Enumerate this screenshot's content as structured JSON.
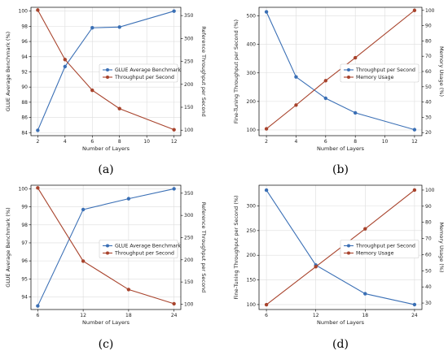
{
  "colors": {
    "blue": "#3a6fb5",
    "red": "#a8432c"
  },
  "chart_data": [
    {
      "panel": "(a)",
      "type": "line",
      "xlabel": "Number of Layers",
      "ylabel_left": "GLUE Average Benchmark (%)",
      "ylabel_right": "Reference Throughput per Second",
      "x": [
        2,
        4,
        6,
        8,
        12
      ],
      "xticks": [
        2,
        4,
        6,
        8,
        10,
        12
      ],
      "xlim": [
        1.5,
        12.5
      ],
      "ylim_left": [
        83.6,
        100.5
      ],
      "yticks_left": [
        84,
        86,
        88,
        90,
        92,
        94,
        96,
        98,
        100
      ],
      "ylim_right": [
        88,
        368
      ],
      "yticks_right": [
        100,
        150,
        200,
        250,
        300,
        350
      ],
      "grid": true,
      "legend_position": "center-right",
      "series": [
        {
          "name": "GLUE Average Benchmark",
          "axis": "left",
          "color": "blue",
          "values": [
            84.3,
            92.7,
            97.8,
            97.9,
            100
          ]
        },
        {
          "name": "Throughput per Second",
          "axis": "right",
          "color": "red",
          "values": [
            362,
            254,
            187,
            147,
            101
          ]
        }
      ]
    },
    {
      "panel": "(b)",
      "type": "line",
      "xlabel": "Number of Layers",
      "ylabel_left": "Fine-Tuning Throughput per Second (%)",
      "ylabel_right": "Memory Usage (%)",
      "x": [
        2,
        4,
        6,
        8,
        12
      ],
      "xticks": [
        2,
        4,
        6,
        8,
        10,
        12
      ],
      "xlim": [
        1.5,
        12.5
      ],
      "ylim_left": [
        80,
        530
      ],
      "yticks_left": [
        100,
        200,
        300,
        400,
        500
      ],
      "ylim_right": [
        18,
        102
      ],
      "yticks_right": [
        20,
        30,
        40,
        50,
        60,
        70,
        80,
        90,
        100
      ],
      "grid": true,
      "legend_position": "center-right",
      "series": [
        {
          "name": "Throughput per Second",
          "axis": "left",
          "color": "blue",
          "values": [
            514,
            286,
            211,
            160,
            101
          ]
        },
        {
          "name": "Memory Usage",
          "axis": "right",
          "color": "red",
          "values": [
            22.5,
            38,
            54,
            69,
            100
          ]
        }
      ]
    },
    {
      "panel": "(c)",
      "type": "line",
      "xlabel": "Number of Layers",
      "ylabel_left": "GLUE Average Benchmark (%)",
      "ylabel_right": "Reference Throughput per Second",
      "x": [
        6,
        12,
        18,
        24
      ],
      "xticks": [
        6,
        12,
        18,
        24
      ],
      "xlim": [
        5.1,
        24.9
      ],
      "ylim_left": [
        93.3,
        100.2
      ],
      "yticks_left": [
        94,
        95,
        96,
        97,
        98,
        99,
        100
      ],
      "ylim_right": [
        88,
        368
      ],
      "yticks_right": [
        100,
        150,
        200,
        250,
        300,
        350
      ],
      "grid": true,
      "legend_position": "center-right",
      "series": [
        {
          "name": "GLUE Average Benchmark",
          "axis": "left",
          "color": "blue",
          "values": [
            93.5,
            98.85,
            99.45,
            100
          ]
        },
        {
          "name": "Throughput per Second",
          "axis": "right",
          "color": "red",
          "values": [
            362,
            197,
            133,
            101
          ]
        }
      ]
    },
    {
      "panel": "(d)",
      "type": "line",
      "xlabel": "Number of Layers",
      "ylabel_left": "Fine-Tuning Throughput per Second (%)",
      "ylabel_right": "Memory Usage (%)",
      "x": [
        6,
        12,
        18,
        24
      ],
      "xticks": [
        6,
        12,
        18,
        24
      ],
      "xlim": [
        5.1,
        24.9
      ],
      "ylim_left": [
        90,
        342
      ],
      "yticks_left": [
        100,
        150,
        200,
        250,
        300
      ],
      "ylim_right": [
        26,
        103
      ],
      "yticks_right": [
        30,
        40,
        50,
        60,
        70,
        80,
        90,
        100
      ],
      "grid": true,
      "legend_position": "center-right",
      "series": [
        {
          "name": "Throughput per Second",
          "axis": "left",
          "color": "blue",
          "values": [
            332,
            180,
            122,
            100
          ]
        },
        {
          "name": "Memory Usage",
          "axis": "right",
          "color": "red",
          "values": [
            29,
            52.5,
            76,
            100
          ]
        }
      ]
    }
  ]
}
